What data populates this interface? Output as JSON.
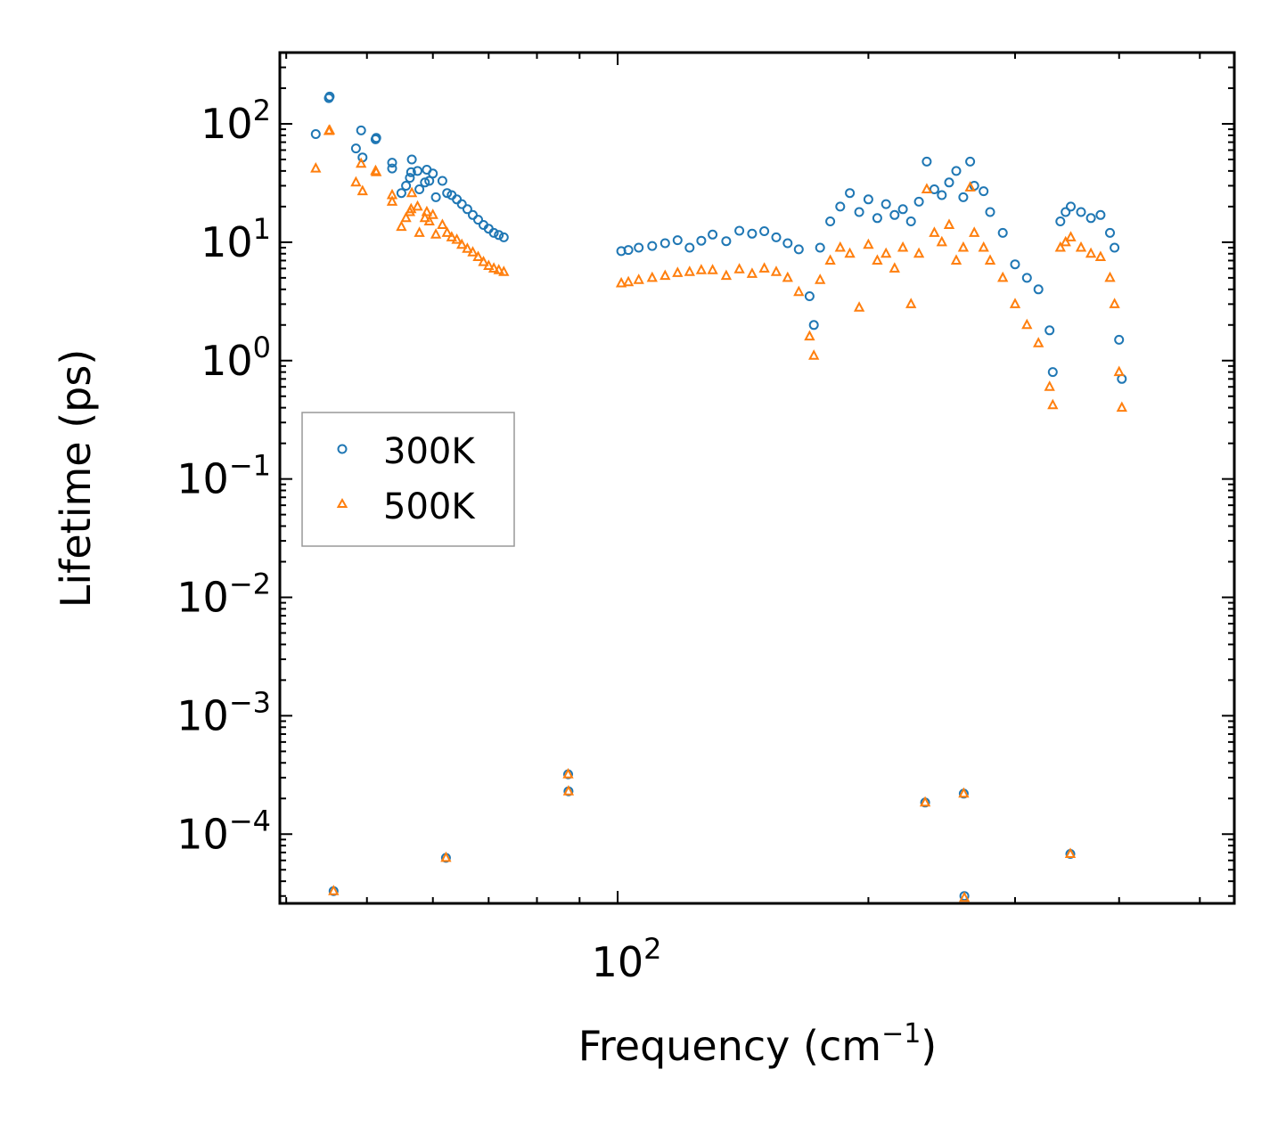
{
  "chart_data": {
    "type": "scatter",
    "title": "",
    "xlabel": "Frequency (cm",
    "xlabel_sup": "−1",
    "xlabel_suffix": ")",
    "ylabel": "Lifetime (ps)",
    "xscale": "log",
    "yscale": "log",
    "xlim": [
      39.3,
      550
    ],
    "ylim": [
      2.6e-05,
      400
    ],
    "x_tick_labels": [
      {
        "value": 100,
        "base": "10",
        "exp": "2"
      }
    ],
    "y_tick_labels": [
      {
        "value": 100,
        "base": "10",
        "exp": "2"
      },
      {
        "value": 10,
        "base": "10",
        "exp": "1"
      },
      {
        "value": 1,
        "base": "10",
        "exp": "0"
      },
      {
        "value": 0.1,
        "base": "10",
        "exp": "−1"
      },
      {
        "value": 0.01,
        "base": "10",
        "exp": "−2"
      },
      {
        "value": 0.001,
        "base": "10",
        "exp": "−3"
      },
      {
        "value": 0.0001,
        "base": "10",
        "exp": "−4"
      }
    ],
    "legend": {
      "position": "center-left",
      "entries": [
        "300K",
        "500K"
      ]
    },
    "colors": {
      "300K": "#1f77b4",
      "500K": "#ff7f0e"
    },
    "series": [
      {
        "name": "300K",
        "marker": "circle",
        "points": [
          [
            43.4,
            82
          ],
          [
            45.0,
            165
          ],
          [
            45.1,
            170
          ],
          [
            48.5,
            62
          ],
          [
            49.2,
            88
          ],
          [
            49.4,
            52
          ],
          [
            51.2,
            74
          ],
          [
            51.3,
            76
          ],
          [
            53.6,
            47
          ],
          [
            53.6,
            42
          ],
          [
            55.0,
            26
          ],
          [
            55.7,
            30
          ],
          [
            56.3,
            35
          ],
          [
            56.5,
            39
          ],
          [
            56.6,
            50
          ],
          [
            57.5,
            40
          ],
          [
            57.8,
            28
          ],
          [
            58.7,
            32
          ],
          [
            59.0,
            41
          ],
          [
            59.4,
            33
          ],
          [
            60.0,
            38
          ],
          [
            60.5,
            24
          ],
          [
            61.6,
            33
          ],
          [
            62.4,
            26
          ],
          [
            63.2,
            25
          ],
          [
            64.1,
            23
          ],
          [
            65.0,
            21
          ],
          [
            66.0,
            19
          ],
          [
            67.0,
            17
          ],
          [
            68.0,
            15.5
          ],
          [
            69.0,
            14
          ],
          [
            70.0,
            13
          ],
          [
            71.0,
            12
          ],
          [
            72.0,
            11.5
          ],
          [
            73.0,
            11
          ],
          [
            101.0,
            8.4
          ],
          [
            103.0,
            8.6
          ],
          [
            106.0,
            9.0
          ],
          [
            110.0,
            9.3
          ],
          [
            114.0,
            9.8
          ],
          [
            118.0,
            10.4
          ],
          [
            122.0,
            9.0
          ],
          [
            126.0,
            10.3
          ],
          [
            130.0,
            11.6
          ],
          [
            135.0,
            10.2
          ],
          [
            140.0,
            12.5
          ],
          [
            145.0,
            11.8
          ],
          [
            150.0,
            12.4
          ],
          [
            155.0,
            11.0
          ],
          [
            160.0,
            9.8
          ],
          [
            165.0,
            8.7
          ],
          [
            170.0,
            3.5
          ],
          [
            172.0,
            2.0
          ],
          [
            175.0,
            9.0
          ],
          [
            180.0,
            15.0
          ],
          [
            185.0,
            20.0
          ],
          [
            190.0,
            26.0
          ],
          [
            195.0,
            18.0
          ],
          [
            200.0,
            23.0
          ],
          [
            205.0,
            16.0
          ],
          [
            210.0,
            21.0
          ],
          [
            215.0,
            17.0
          ],
          [
            220.0,
            19.0
          ],
          [
            225.0,
            15.0
          ],
          [
            230.0,
            22.0
          ],
          [
            235.0,
            48.0
          ],
          [
            240.0,
            28.0
          ],
          [
            245.0,
            25.0
          ],
          [
            250.0,
            32.0
          ],
          [
            255.0,
            40.0
          ],
          [
            260.0,
            24.0
          ],
          [
            265.0,
            48.0
          ],
          [
            268.0,
            30.0
          ],
          [
            275.0,
            27.0
          ],
          [
            280.0,
            18.0
          ],
          [
            290.0,
            12.0
          ],
          [
            300.0,
            6.5
          ],
          [
            310.0,
            5.0
          ],
          [
            320.0,
            4.0
          ],
          [
            330.0,
            1.8
          ],
          [
            333.0,
            0.8
          ],
          [
            340.0,
            15.0
          ],
          [
            345.0,
            18.0
          ],
          [
            350.0,
            20.0
          ],
          [
            360.0,
            18.0
          ],
          [
            370.0,
            16.0
          ],
          [
            380.0,
            17.0
          ],
          [
            390.0,
            12.0
          ],
          [
            395.0,
            9.0
          ],
          [
            400.0,
            1.5
          ],
          [
            403.0,
            0.7
          ],
          [
            45.6,
            3.3e-05
          ],
          [
            62.2,
            6.3e-05
          ],
          [
            87.2,
            0.00032
          ],
          [
            87.3,
            0.00023
          ],
          [
            234.0,
            0.000185
          ],
          [
            260.3,
            0.00022
          ],
          [
            260.8,
            3e-05
          ],
          [
            349.5,
            6.8e-05
          ]
        ]
      },
      {
        "name": "500K",
        "marker": "triangle",
        "points": [
          [
            43.4,
            42
          ],
          [
            45.0,
            87
          ],
          [
            45.1,
            88
          ],
          [
            48.5,
            32
          ],
          [
            49.2,
            46
          ],
          [
            49.4,
            27
          ],
          [
            51.2,
            40
          ],
          [
            51.3,
            39
          ],
          [
            53.6,
            25
          ],
          [
            53.6,
            22
          ],
          [
            55.0,
            13.5
          ],
          [
            55.7,
            16
          ],
          [
            56.3,
            18
          ],
          [
            56.5,
            19
          ],
          [
            56.6,
            26
          ],
          [
            57.5,
            20
          ],
          [
            57.8,
            12
          ],
          [
            58.7,
            16
          ],
          [
            59.0,
            18
          ],
          [
            59.4,
            15
          ],
          [
            60.0,
            17
          ],
          [
            60.5,
            11.6
          ],
          [
            61.6,
            14
          ],
          [
            62.4,
            12
          ],
          [
            63.2,
            11
          ],
          [
            64.1,
            10.5
          ],
          [
            65.0,
            9.5
          ],
          [
            66.0,
            8.8
          ],
          [
            67.0,
            8.2
          ],
          [
            68.0,
            7.5
          ],
          [
            69.0,
            6.8
          ],
          [
            70.0,
            6.3
          ],
          [
            71.0,
            6.0
          ],
          [
            72.0,
            5.8
          ],
          [
            73.0,
            5.6
          ],
          [
            101.0,
            4.5
          ],
          [
            103.0,
            4.6
          ],
          [
            106.0,
            4.8
          ],
          [
            110.0,
            5.0
          ],
          [
            114.0,
            5.2
          ],
          [
            118.0,
            5.5
          ],
          [
            122.0,
            5.6
          ],
          [
            126.0,
            5.8
          ],
          [
            130.0,
            5.8
          ],
          [
            135.0,
            5.2
          ],
          [
            140.0,
            5.9
          ],
          [
            145.0,
            5.4
          ],
          [
            150.0,
            6.0
          ],
          [
            155.0,
            5.6
          ],
          [
            160.0,
            5.0
          ],
          [
            165.0,
            3.8
          ],
          [
            170.0,
            1.6
          ],
          [
            172.0,
            1.1
          ],
          [
            175.0,
            4.8
          ],
          [
            180.0,
            7.0
          ],
          [
            185.0,
            9.0
          ],
          [
            190.0,
            8.0
          ],
          [
            195.0,
            2.8
          ],
          [
            200.0,
            9.5
          ],
          [
            205.0,
            7.0
          ],
          [
            210.0,
            8.0
          ],
          [
            215.0,
            6.0
          ],
          [
            220.0,
            9.0
          ],
          [
            225.0,
            3.0
          ],
          [
            230.0,
            8.0
          ],
          [
            235.0,
            28.0
          ],
          [
            240.0,
            12.0
          ],
          [
            245.0,
            10.0
          ],
          [
            250.0,
            14.0
          ],
          [
            255.0,
            7.0
          ],
          [
            260.0,
            9.0
          ],
          [
            265.0,
            29.0
          ],
          [
            268.0,
            12.0
          ],
          [
            275.0,
            9.0
          ],
          [
            280.0,
            7.0
          ],
          [
            290.0,
            5.0
          ],
          [
            300.0,
            3.0
          ],
          [
            310.0,
            2.0
          ],
          [
            320.0,
            1.4
          ],
          [
            330.0,
            0.6
          ],
          [
            333.0,
            0.42
          ],
          [
            340.0,
            9.0
          ],
          [
            345.0,
            10.0
          ],
          [
            350.0,
            11.0
          ],
          [
            360.0,
            9.0
          ],
          [
            370.0,
            8.0
          ],
          [
            380.0,
            7.5
          ],
          [
            390.0,
            5.0
          ],
          [
            395.0,
            3.0
          ],
          [
            400.0,
            0.8
          ],
          [
            403.0,
            0.4
          ],
          [
            45.6,
            3.3e-05
          ],
          [
            62.2,
            6.3e-05
          ],
          [
            87.2,
            0.00032
          ],
          [
            87.3,
            0.00023
          ],
          [
            234.0,
            0.000185
          ],
          [
            260.3,
            0.00022
          ],
          [
            260.8,
            2.9e-05
          ],
          [
            349.5,
            6.8e-05
          ]
        ]
      }
    ]
  }
}
